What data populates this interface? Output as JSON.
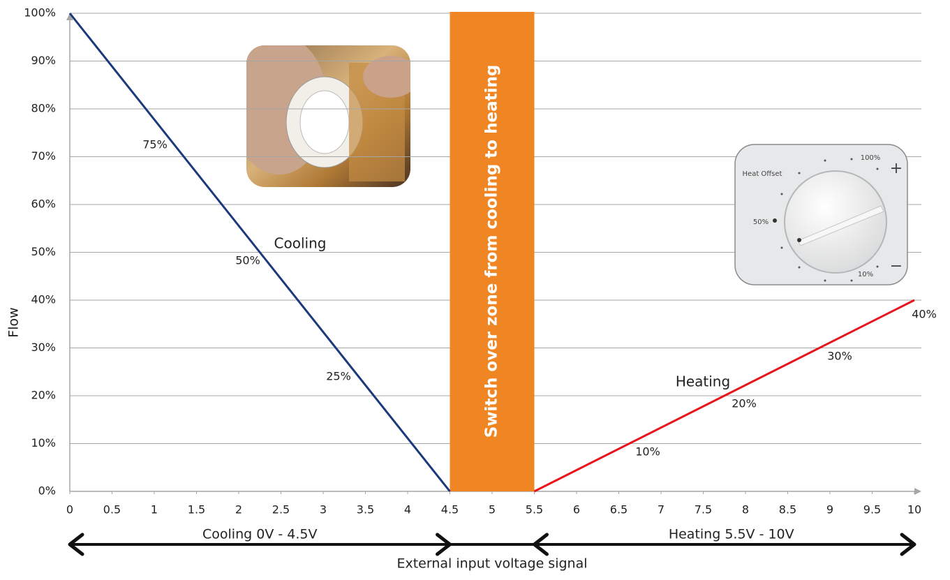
{
  "chart_data": {
    "type": "line",
    "xlabel": "External input voltage signal",
    "ylabel": "Flow",
    "xlim": [
      0,
      10
    ],
    "ylim": [
      0,
      100
    ],
    "xticks": [
      0,
      0.5,
      1,
      1.5,
      2,
      2.5,
      3,
      3.5,
      4,
      4.5,
      5,
      5.5,
      6,
      6.5,
      7,
      7.5,
      8,
      8.5,
      9,
      9.5,
      10
    ],
    "yticks": [
      {
        "value": 0,
        "label": "0%"
      },
      {
        "value": 10,
        "label": "10%"
      },
      {
        "value": 20,
        "label": "20%"
      },
      {
        "value": 30,
        "label": "30%"
      },
      {
        "value": 40,
        "label": "40%"
      },
      {
        "value": 50,
        "label": "50%"
      },
      {
        "value": 60,
        "label": "60%"
      },
      {
        "value": 70,
        "label": "70%"
      },
      {
        "value": 80,
        "label": "80%"
      },
      {
        "value": 90,
        "label": "90%"
      },
      {
        "value": 100,
        "label": "100%"
      }
    ],
    "grid": true,
    "series": [
      {
        "name": "Cooling",
        "color": "#1b3a7e",
        "x": [
          0,
          4.5
        ],
        "values": [
          100,
          0
        ]
      },
      {
        "name": "Heating",
        "color": "#e8141b",
        "x": [
          5.5,
          10
        ],
        "values": [
          0,
          40
        ]
      }
    ],
    "band": {
      "x": [
        4.5,
        5.5
      ],
      "label": "Switch over zone from cooling to heating",
      "color": "#f08623"
    },
    "ranges": [
      {
        "label": "Cooling 0V - 4.5V",
        "x": [
          0,
          4.5
        ]
      },
      {
        "label": "Heating 5.5V - 10V",
        "x": [
          5.5,
          10
        ]
      }
    ],
    "annotations": [
      "75%",
      "50%",
      "25%",
      "10%",
      "20%",
      "30%",
      "40%"
    ],
    "dial_labels": [
      "Heat Offset",
      "100%",
      "50%",
      "10%",
      "+",
      "−"
    ]
  }
}
